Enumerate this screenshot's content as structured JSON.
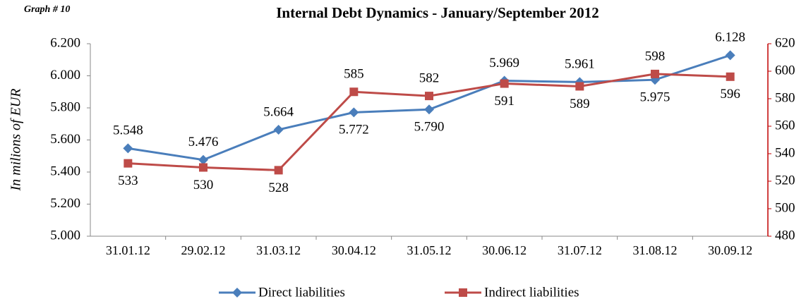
{
  "chart_data": {
    "type": "line",
    "title": "Internal Debt Dynamics - January/September 2012",
    "subtitle": "Graph # 10",
    "y_label": "In milions of EUR",
    "categories": [
      "31.01.12",
      "29.02.12",
      "31.03.12",
      "30.04.12",
      "31.05.12",
      "30.06.12",
      "31.07.12",
      "31.08.12",
      "30.09.12"
    ],
    "series": [
      {
        "name": "Direct liabilities",
        "color": "#4a7ebb",
        "marker": "diamond",
        "values": [
          5548,
          5476,
          5664,
          5772,
          5790,
          5969,
          5961,
          5975,
          6128
        ],
        "value_labels": [
          "5.548",
          "5.476",
          "5.664",
          "5.772",
          "5.790",
          "5.969",
          "5.961",
          "5.975",
          "6.128"
        ]
      },
      {
        "name": "Indirect liabilities",
        "color": "#be4b48",
        "marker": "square",
        "axis": "y2",
        "values": [
          533,
          530,
          528,
          585,
          582,
          591,
          589,
          598,
          596
        ]
      }
    ],
    "ylim": [
      5000,
      6200
    ],
    "yticks": [
      {
        "value": 5000,
        "label": "5.000"
      },
      {
        "value": 5200,
        "label": "5.200"
      },
      {
        "value": 5400,
        "label": "5.400"
      },
      {
        "value": 5600,
        "label": "5.600"
      },
      {
        "value": 5800,
        "label": "5.800"
      },
      {
        "value": 6000,
        "label": "6.000"
      },
      {
        "value": 6200,
        "label": "6.200"
      }
    ],
    "y2lim": [
      480,
      620
    ],
    "y2ticks": [
      480,
      500,
      520,
      540,
      560,
      580,
      600,
      620
    ],
    "y2_color": "#c00000",
    "legend": "bottom"
  }
}
